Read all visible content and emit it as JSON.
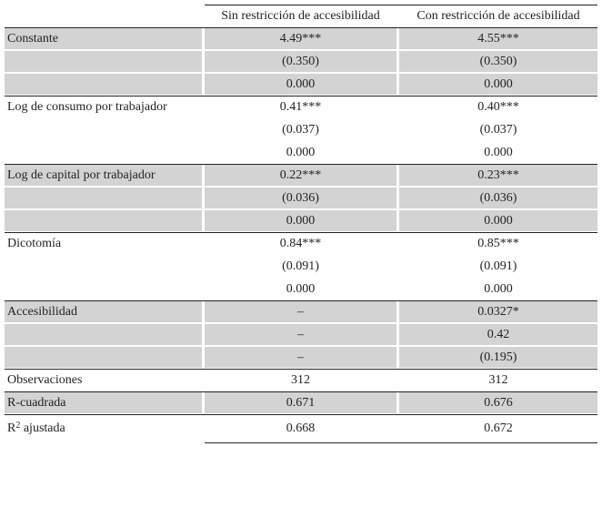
{
  "table": {
    "columns": [
      "Sin restricción de accesibilidad",
      "Con restricción de accesibilidad"
    ],
    "groups": [
      {
        "label": "Constante",
        "rows": [
          [
            "4.49***",
            "4.55***"
          ],
          [
            "(0.350)",
            "(0.350)"
          ],
          [
            "0.000",
            "0.000"
          ]
        ]
      },
      {
        "label": "Log de consumo por trabajador",
        "rows": [
          [
            "0.41***",
            "0.40***"
          ],
          [
            "(0.037)",
            "(0.037)"
          ],
          [
            "0.000",
            "0.000"
          ]
        ]
      },
      {
        "label": "Log de capital por trabajador",
        "rows": [
          [
            "0.22***",
            "0.23***"
          ],
          [
            "(0.036)",
            "(0.036)"
          ],
          [
            "0.000",
            "0.000"
          ]
        ]
      },
      {
        "label": "Dicotomía",
        "rows": [
          [
            "0.84***",
            "0.85***"
          ],
          [
            "(0.091)",
            "(0.091)"
          ],
          [
            "0.000",
            "0.000"
          ]
        ]
      },
      {
        "label": "Accesibilidad",
        "rows": [
          [
            "–",
            "0.0327*"
          ],
          [
            "–",
            "0.42"
          ],
          [
            "–",
            "(0.195)"
          ]
        ]
      },
      {
        "label": "Observaciones",
        "rows": [
          [
            "312",
            "312"
          ]
        ]
      },
      {
        "label": "R-cuadrada",
        "rows": [
          [
            "0.671",
            "0.676"
          ]
        ]
      },
      {
        "label": {
          "base": "R",
          "sup": "2",
          "rest": " ajustada"
        },
        "rows": [
          [
            "0.668",
            "0.672"
          ]
        ]
      }
    ]
  }
}
